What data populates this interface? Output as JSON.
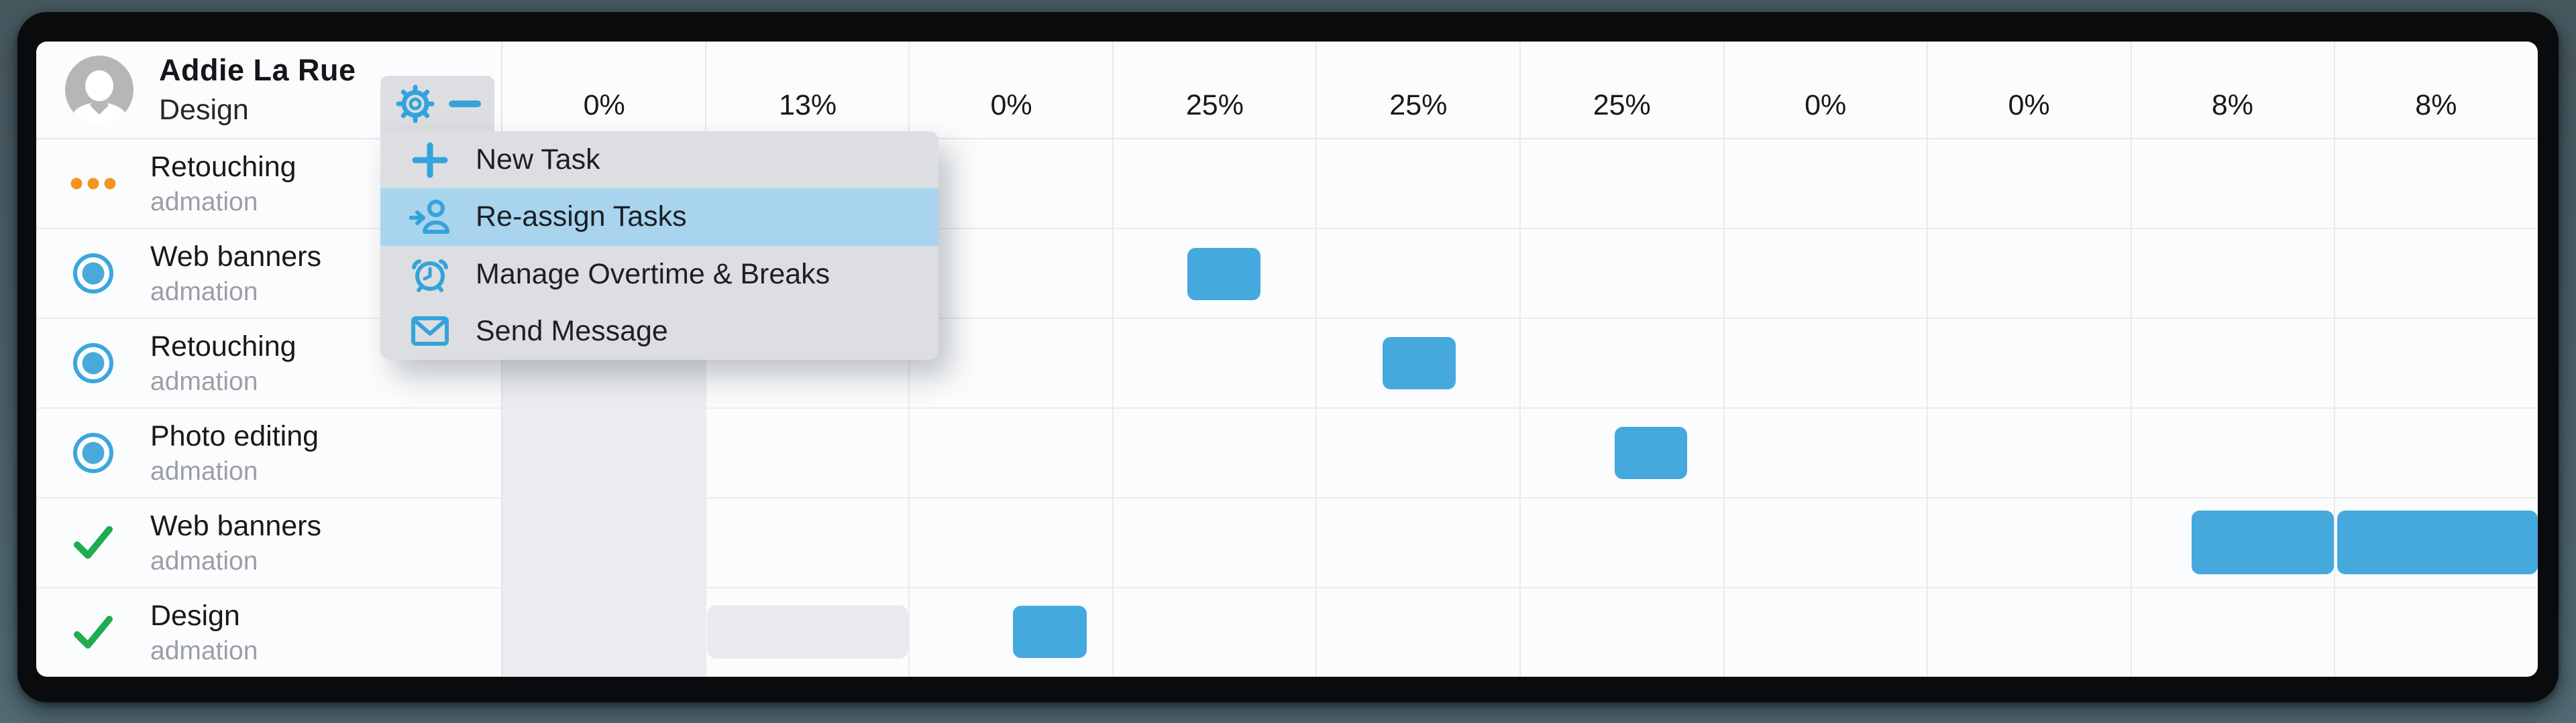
{
  "person": {
    "name": "Addie La Rue",
    "role": "Design"
  },
  "header": {
    "columns": [
      "0%",
      "13%",
      "0%",
      "25%",
      "25%",
      "25%",
      "0%",
      "0%",
      "8%",
      "8%"
    ],
    "shaded_column_index": 0
  },
  "tasks": [
    {
      "name": "Retouching",
      "project": "admation",
      "status": "pending",
      "status_icon": "ellipsis-icon"
    },
    {
      "name": "Web banners",
      "project": "admation",
      "status": "in-progress",
      "status_icon": "radio-icon"
    },
    {
      "name": "Retouching",
      "project": "admation",
      "status": "in-progress",
      "status_icon": "radio-icon"
    },
    {
      "name": "Photo editing",
      "project": "admation",
      "status": "in-progress",
      "status_icon": "radio-icon"
    },
    {
      "name": "Web banners",
      "project": "admation",
      "status": "complete",
      "status_icon": "check-icon"
    },
    {
      "name": "Design",
      "project": "admation",
      "status": "complete",
      "status_icon": "check-icon"
    }
  ],
  "gear_tab": {
    "icons": [
      "gear-icon",
      "minus-icon"
    ]
  },
  "menu": {
    "items": [
      {
        "label": "New Task",
        "icon": "plus-icon",
        "highlighted": false
      },
      {
        "label": "Re-assign Tasks",
        "icon": "reassign-icon",
        "highlighted": true
      },
      {
        "label": "Manage Overtime & Breaks",
        "icon": "alarm-icon",
        "highlighted": false
      },
      {
        "label": "Send Message",
        "icon": "envelope-icon",
        "highlighted": false
      }
    ]
  },
  "bars": [
    {
      "row": 1,
      "col": 3,
      "offset": 0.365,
      "width": 0.359,
      "kind": "task",
      "height": 78
    },
    {
      "row": 2,
      "col": 4,
      "offset": 0.324,
      "width": 0.359,
      "kind": "task",
      "height": 78
    },
    {
      "row": 3,
      "col": 5,
      "offset": 0.465,
      "width": 0.356,
      "kind": "task",
      "height": 78
    },
    {
      "row": 4,
      "col": 8,
      "offset": 0.299,
      "width": 0.699,
      "kind": "task",
      "height": 95
    },
    {
      "row": 4,
      "col": 9,
      "offset": 0.015,
      "width": 0.985,
      "kind": "task",
      "height": 95
    },
    {
      "row": 5,
      "col": 1,
      "offset": 0.005,
      "width": 0.99,
      "kind": "ghost",
      "height": 80
    },
    {
      "row": 5,
      "col": 2,
      "offset": 0.508,
      "width": 0.363,
      "kind": "task",
      "height": 78
    }
  ],
  "colors": {
    "accent_blue": "#35a3da",
    "bar_blue": "#45a9dd",
    "highlight_blue": "#a8d4ee",
    "menu_gray": "#dcdee1",
    "ghost_gray": "#e8eaed",
    "column_shade": "#ecedf0",
    "status_orange": "#f5941f",
    "status_green": "#20ac51",
    "frame_black": "#0a0b0d",
    "desktop_slate": "#4b5f67"
  }
}
